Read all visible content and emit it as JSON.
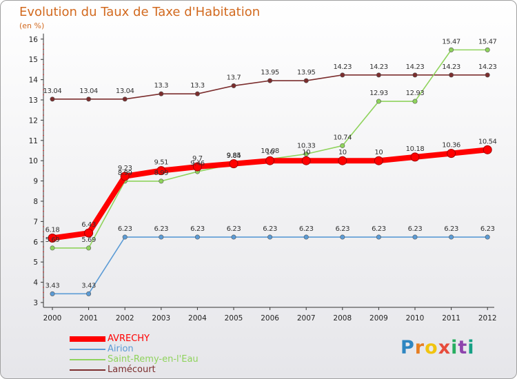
{
  "chart_data": {
    "type": "line",
    "title": "Evolution du Taux de Taxe d'Habitation",
    "subtitle": "(en %)",
    "xlabel": "",
    "ylabel": "",
    "x": [
      "2000",
      "2001",
      "2002",
      "2003",
      "2004",
      "2005",
      "2006",
      "2007",
      "2008",
      "2009",
      "2010",
      "2011",
      "2012"
    ],
    "ylim": [
      3,
      16
    ],
    "yticks": [
      3,
      4,
      5,
      6,
      7,
      8,
      9,
      10,
      11,
      12,
      13,
      14,
      15,
      16
    ],
    "grid": false,
    "legend_position": "bottom-left",
    "series": [
      {
        "name": "AVRECHY",
        "color": "#ff0000",
        "emphasis": true,
        "values": [
          6.18,
          6.43,
          9.23,
          9.51,
          9.7,
          9.85,
          10,
          10,
          10,
          10,
          10.18,
          10.36,
          10.54
        ],
        "labels": [
          "6.18",
          "6.43",
          "9.23",
          "9.51",
          "9.7",
          "9.85",
          "10",
          "10",
          "10",
          "10",
          "10.18",
          "10.36",
          "10.54"
        ]
      },
      {
        "name": "Airion",
        "color": "#5b9bd5",
        "values": [
          3.43,
          3.43,
          6.23,
          6.23,
          6.23,
          6.23,
          6.23,
          6.23,
          6.23,
          6.23,
          6.23,
          6.23,
          6.23
        ],
        "labels": [
          "3.43",
          "3.43",
          "6.23",
          "6.23",
          "6.23",
          "6.23",
          "6.23",
          "6.23",
          "6.23",
          "6.23",
          "6.23",
          "6.23",
          "6.23"
        ]
      },
      {
        "name": "Saint-Remy-en-l'Eau",
        "color": "#8fd35c",
        "values": [
          5.69,
          5.69,
          8.99,
          8.99,
          9.46,
          9.84,
          10.08,
          10.33,
          10.74,
          12.93,
          12.93,
          15.47,
          15.47
        ],
        "labels": [
          "5.69",
          "5.69",
          "8.99",
          "8.99",
          "9.46",
          "9.84",
          "10.08",
          "10.33",
          "10.74",
          "12.93",
          "12.93",
          "15.47",
          "15.47"
        ]
      },
      {
        "name": "Lamécourt",
        "color": "#7b2d2d",
        "values": [
          13.04,
          13.04,
          13.04,
          13.3,
          13.3,
          13.7,
          13.95,
          13.95,
          14.23,
          14.23,
          14.23,
          14.23,
          14.23
        ],
        "labels": [
          "13.04",
          "13.04",
          "13.04",
          "13.3",
          "13.3",
          "13.7",
          "13.95",
          "13.95",
          "14.23",
          "14.23",
          "14.23",
          "14.23",
          "14.23"
        ]
      }
    ]
  },
  "logo": {
    "letters": [
      "P",
      "r",
      "o",
      "x",
      "i",
      "t",
      "i"
    ],
    "colors": [
      "#2e86c1",
      "#e67e22",
      "#f1c40f",
      "#e74c3c",
      "#27ae60",
      "#8e44ad",
      "#16a085"
    ]
  }
}
